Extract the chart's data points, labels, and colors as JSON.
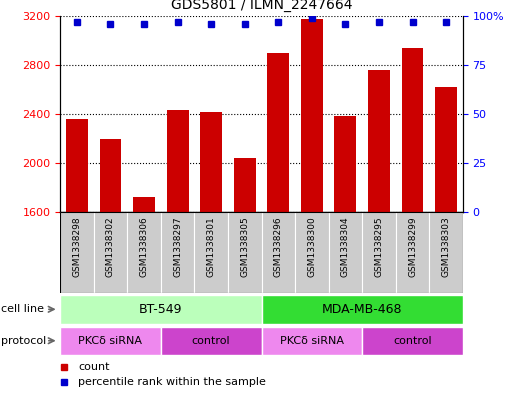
{
  "title": "GDS5801 / ILMN_2247664",
  "samples": [
    "GSM1338298",
    "GSM1338302",
    "GSM1338306",
    "GSM1338297",
    "GSM1338301",
    "GSM1338305",
    "GSM1338296",
    "GSM1338300",
    "GSM1338304",
    "GSM1338295",
    "GSM1338299",
    "GSM1338303"
  ],
  "counts": [
    2360,
    2200,
    1720,
    2430,
    2420,
    2040,
    2900,
    3170,
    2380,
    2760,
    2940,
    2620
  ],
  "percentiles": [
    97,
    96,
    96,
    97,
    96,
    96,
    97,
    99,
    96,
    97,
    97,
    97
  ],
  "ylim_left": [
    1600,
    3200
  ],
  "ylim_right": [
    0,
    100
  ],
  "yticks_left": [
    1600,
    2000,
    2400,
    2800,
    3200
  ],
  "yticks_right": [
    0,
    25,
    50,
    75,
    100
  ],
  "bar_color": "#cc0000",
  "percentile_color": "#0000cc",
  "cell_line_groups": [
    {
      "label": "BT-549",
      "start": 0,
      "end": 6,
      "color": "#bbffbb"
    },
    {
      "label": "MDA-MB-468",
      "start": 6,
      "end": 12,
      "color": "#33dd33"
    }
  ],
  "protocol_groups": [
    {
      "label": "PKCδ siRNA",
      "start": 0,
      "end": 3,
      "color": "#ee88ee"
    },
    {
      "label": "control",
      "start": 3,
      "end": 6,
      "color": "#cc44cc"
    },
    {
      "label": "PKCδ siRNA",
      "start": 6,
      "end": 9,
      "color": "#ee88ee"
    },
    {
      "label": "control",
      "start": 9,
      "end": 12,
      "color": "#cc44cc"
    }
  ],
  "legend_count_label": "count",
  "legend_percentile_label": "percentile rank within the sample",
  "row_label_cell_line": "cell line",
  "row_label_protocol": "protocol",
  "sample_box_color": "#cccccc",
  "grid_color": "#333333",
  "right_axis_label": "100%"
}
